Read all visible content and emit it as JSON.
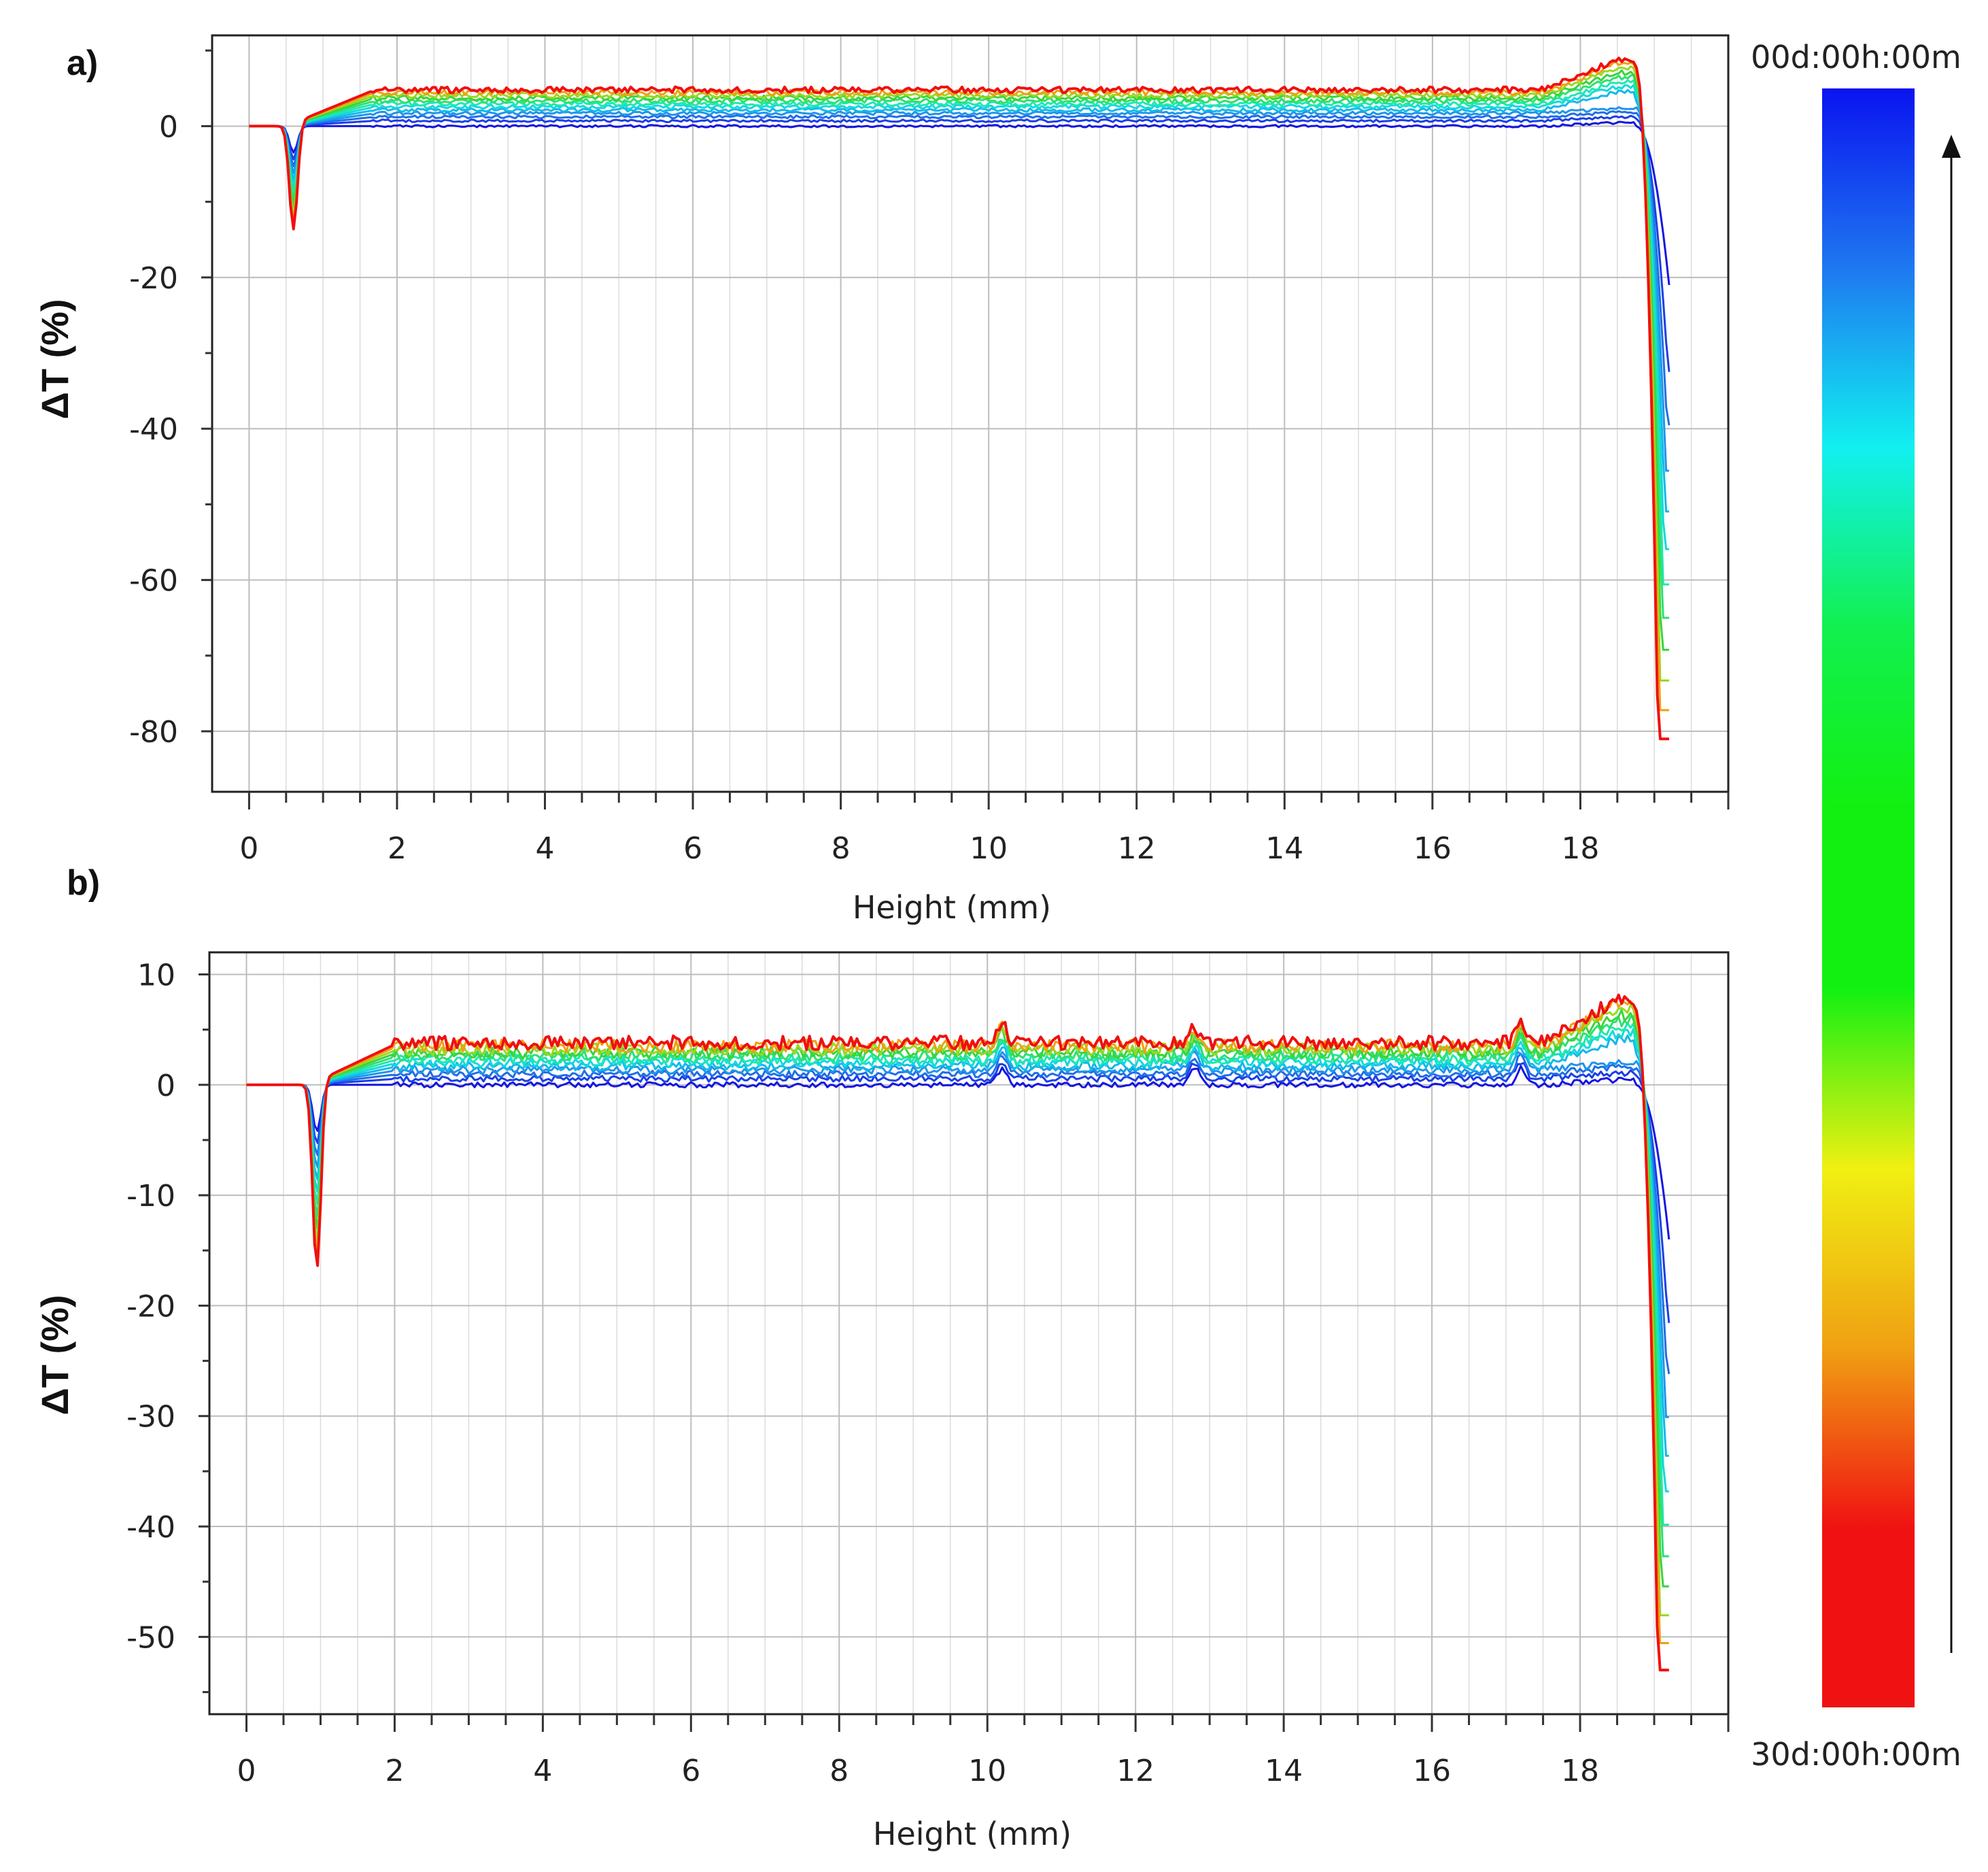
{
  "chart_data": [
    {
      "panel": "a)",
      "type": "line",
      "xlabel": "Height (mm)",
      "ylabel": "ΔT (%)",
      "xlim": [
        -0.5,
        20.0
      ],
      "ylim": [
        -88,
        12
      ],
      "xticks": [
        0,
        2,
        4,
        6,
        8,
        10,
        12,
        14,
        16,
        18
      ],
      "yticks": [
        0,
        -20,
        -40,
        -60,
        -80
      ],
      "grid": true,
      "series_count": 12,
      "time_start": "00d:00h:00m",
      "time_end": "30d:00h:00m",
      "plateau_first": 0.0,
      "plateau_last": 4.8,
      "dip": {
        "x": 0.6,
        "value": -14
      },
      "end_drop": {
        "x": 19.0,
        "value": -84
      },
      "colors": [
        "#1515e0",
        "#1a3fe6",
        "#1f6ee8",
        "#1e95ea",
        "#12b8e8",
        "#12d8df",
        "#20e8b0",
        "#2ee070",
        "#3ad43a",
        "#9ad820",
        "#f0a010",
        "#f01010"
      ]
    },
    {
      "panel": "b)",
      "type": "line",
      "xlabel": "Height (mm)",
      "ylabel": "ΔT (%)",
      "xlim": [
        -0.5,
        20.0
      ],
      "ylim": [
        -57,
        12
      ],
      "xticks": [
        0,
        2,
        4,
        6,
        8,
        10,
        12,
        14,
        16,
        18
      ],
      "yticks": [
        10,
        0,
        -10,
        -20,
        -30,
        -40,
        -50
      ],
      "grid": true,
      "series_count": 12,
      "time_start": "00d:00h:00m",
      "time_end": "30d:00h:00m",
      "plateau_first": 0.0,
      "plateau_last": 3.8,
      "dip": {
        "x": 0.95,
        "value": -17
      },
      "spikes": [
        {
          "x": 10.2,
          "value": 5.5
        },
        {
          "x": 12.8,
          "value": 5
        },
        {
          "x": 17.2,
          "value": 5.5
        }
      ],
      "end_drop": {
        "x": 19.0,
        "value": -56
      },
      "colors": [
        "#1515e0",
        "#1a3fe6",
        "#1f6ee8",
        "#1e95ea",
        "#12b8e8",
        "#12d8df",
        "#20e8b0",
        "#2ee070",
        "#3ad43a",
        "#9ad820",
        "#f0a010",
        "#f01010"
      ]
    }
  ],
  "colorbar": {
    "top_label": "00d:00h:00m",
    "bottom_label": "30d:00h:00m",
    "stops": [
      "#0a14f0",
      "#1e78f0",
      "#12f0f0",
      "#12f050",
      "#12f012",
      "#12f012",
      "#f0f012",
      "#f0a012",
      "#f01212",
      "#f01212"
    ]
  }
}
